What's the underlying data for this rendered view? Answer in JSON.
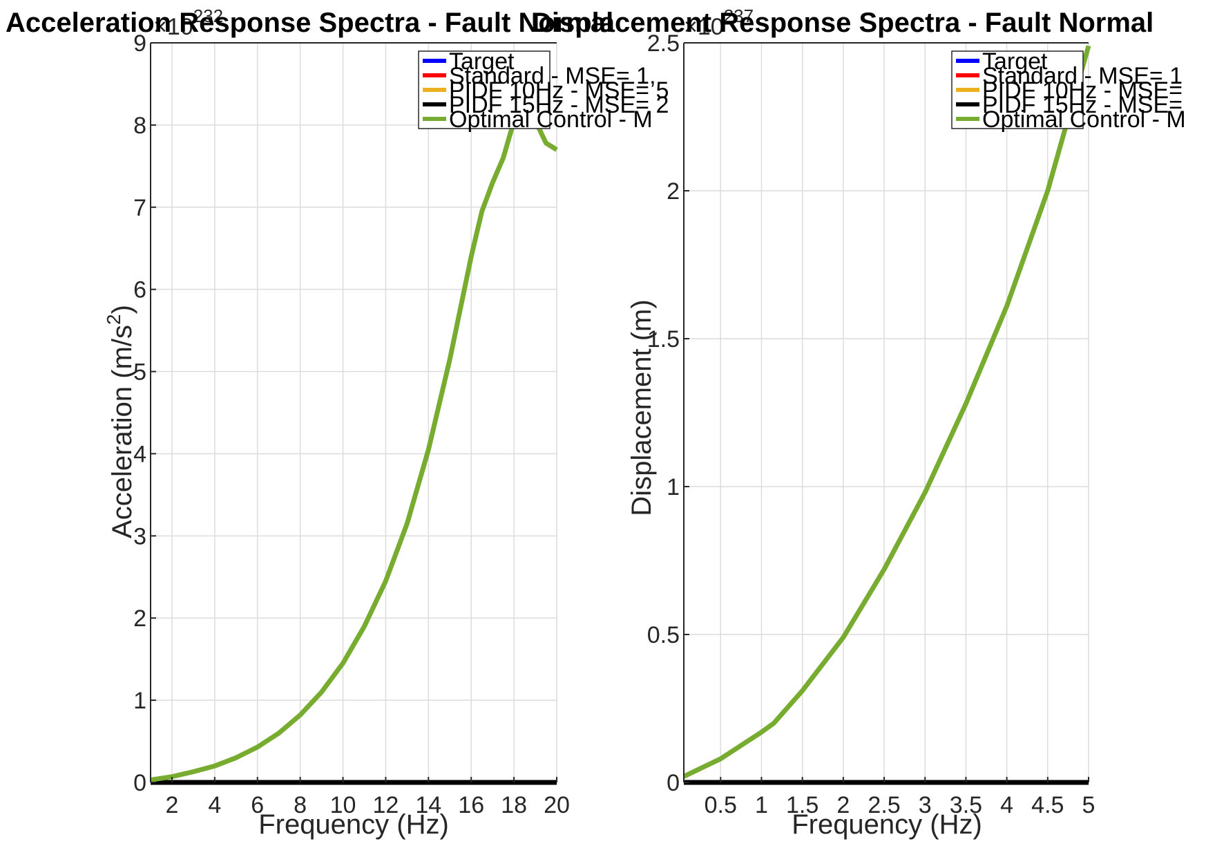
{
  "colors": {
    "target": "#0000ff",
    "standard": "#ff0000",
    "pidf10": "#edb120",
    "pidf15": "#000000",
    "optimal": "#77ac30"
  },
  "chart_data": [
    {
      "type": "line",
      "title": "Acceleration Response Spectra - Fault Normal",
      "xlabel": "Frequency (Hz)",
      "ylabel": "Acceleration (m/s²)",
      "y_exponent_label": "×10",
      "y_exponent": "232",
      "xlim": [
        1,
        20
      ],
      "ylim": [
        0,
        9
      ],
      "xticks": [
        2,
        4,
        6,
        8,
        10,
        12,
        14,
        16,
        18,
        20
      ],
      "xtick_labels": [
        "2",
        "4",
        "6",
        "8",
        "10",
        "12",
        "14",
        "16",
        "18",
        "20"
      ],
      "yticks": [
        0,
        1,
        2,
        3,
        4,
        5,
        6,
        7,
        8,
        9
      ],
      "ytick_labels": [
        "0",
        "1",
        "2",
        "3",
        "4",
        "5",
        "6",
        "7",
        "8",
        "9"
      ],
      "grid": true,
      "legend_position": "top-right",
      "legend": [
        {
          "label": "Target",
          "color_key": "target"
        },
        {
          "label": "Standard -  MSE= 1,",
          "color_key": "standard"
        },
        {
          "label": "PIDF 10Hz - MSE= 5",
          "color_key": "pidf10"
        },
        {
          "label": "PIDF 15Hz - MSE= 2",
          "color_key": "pidf15"
        },
        {
          "label": "Optimal Control -  M",
          "color_key": "optimal"
        }
      ],
      "series": [
        {
          "name": "PIDF 15Hz",
          "color_key": "pidf15",
          "x": [
            1,
            20
          ],
          "y": [
            0,
            0
          ]
        },
        {
          "name": "Optimal Control",
          "color_key": "optimal",
          "x": [
            1,
            2,
            3,
            4,
            5,
            6,
            7,
            8,
            9,
            10,
            11,
            12,
            13,
            14,
            15,
            16,
            16.5,
            17,
            17.5,
            18,
            18.5,
            19,
            19.5,
            20
          ],
          "y": [
            0.03,
            0.07,
            0.13,
            0.2,
            0.3,
            0.43,
            0.6,
            0.82,
            1.1,
            1.45,
            1.9,
            2.45,
            3.15,
            4.05,
            5.15,
            6.4,
            6.95,
            7.3,
            7.6,
            8.05,
            8.3,
            8.05,
            7.78,
            7.7
          ]
        }
      ]
    },
    {
      "type": "line",
      "title": "Displacement Response Spectra - Fault Normal",
      "xlabel": "Frequency (Hz)",
      "ylabel": "Displacement (m)",
      "y_exponent_label": "×10",
      "y_exponent": "237",
      "xlim": [
        0.05,
        5
      ],
      "ylim": [
        0,
        2.5
      ],
      "xticks": [
        0.5,
        1,
        1.5,
        2,
        2.5,
        3,
        3.5,
        4,
        4.5,
        5
      ],
      "xtick_labels": [
        "0.5",
        "1",
        "1.5",
        "2",
        "2.5",
        "3",
        "3.5",
        "4",
        "4.5",
        "5"
      ],
      "yticks": [
        0,
        0.5,
        1,
        1.5,
        2,
        2.5
      ],
      "ytick_labels": [
        "0",
        "0.5",
        "1",
        "1.5",
        "2",
        "2.5"
      ],
      "grid": true,
      "legend_position": "top-right",
      "legend": [
        {
          "label": "Target",
          "color_key": "target"
        },
        {
          "label": "Standard - MSE= 1",
          "color_key": "standard"
        },
        {
          "label": "PIDF 10Hz - MSE=",
          "color_key": "pidf10"
        },
        {
          "label": "PIDF 15Hz - MSE=",
          "color_key": "pidf15"
        },
        {
          "label": "Optimal Control - M",
          "color_key": "optimal"
        }
      ],
      "series": [
        {
          "name": "PIDF 15Hz",
          "color_key": "pidf15",
          "x": [
            0.05,
            5
          ],
          "y": [
            0,
            0
          ]
        },
        {
          "name": "Optimal Control",
          "color_key": "optimal",
          "x": [
            0.05,
            0.5,
            1,
            1.15,
            1.5,
            2,
            2.5,
            3,
            3.5,
            4,
            4.5,
            5
          ],
          "y": [
            0.02,
            0.08,
            0.17,
            0.2,
            0.31,
            0.49,
            0.72,
            0.98,
            1.28,
            1.61,
            2.0,
            2.49
          ]
        }
      ]
    }
  ]
}
